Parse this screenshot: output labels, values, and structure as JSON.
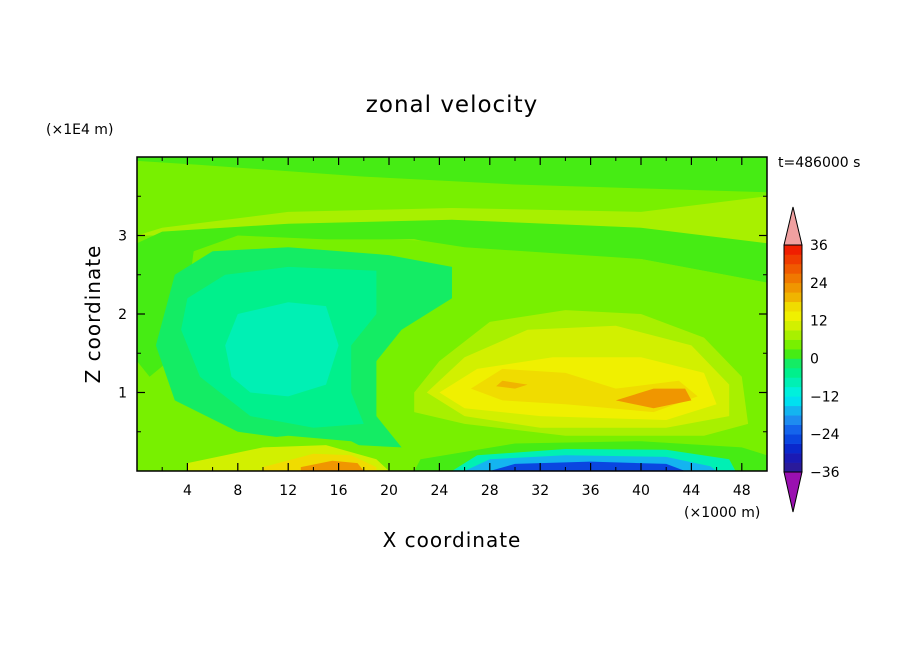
{
  "chart_data": {
    "type": "heatmap",
    "title": "zonal velocity",
    "xlabel": "X coordinate",
    "ylabel": "Z coordinate",
    "x_unit_label": "(×1000 m)",
    "y_unit_label": "(×1E4 m)",
    "time_label": "t=486000 s",
    "xlim": [
      0,
      50
    ],
    "ylim": [
      0,
      4
    ],
    "x_ticks": [
      4,
      8,
      12,
      16,
      20,
      24,
      28,
      32,
      36,
      40,
      44,
      48
    ],
    "y_ticks": [
      1,
      2,
      3
    ],
    "colorbar": {
      "levels": [
        -42,
        -39,
        -36,
        -33,
        -30,
        -27,
        -24,
        -21,
        -18,
        -15,
        -12,
        -9,
        -6,
        -3,
        0,
        3,
        6,
        9,
        12,
        15,
        18,
        21,
        24,
        27,
        30,
        33,
        36,
        39,
        42
      ],
      "tick_labels": [
        "36",
        "24",
        "12",
        "0",
        "−12",
        "−24",
        "−36"
      ],
      "tick_values": [
        36,
        24,
        12,
        0,
        -12,
        -24,
        -36
      ],
      "colors_low_to_high": [
        "#2a1a9a",
        "#1a1ab4",
        "#0a28cc",
        "#0a46e0",
        "#1464ec",
        "#1e8cf0",
        "#14b4f0",
        "#00e0f0",
        "#00f0dc",
        "#00f0b4",
        "#00f08c",
        "#14ec64",
        "#46ec14",
        "#78f000",
        "#a8f000",
        "#d2f000",
        "#f0f000",
        "#f0dc00",
        "#f0b400",
        "#f09600",
        "#f07800",
        "#f05a00",
        "#f03c00",
        "#f01e00"
      ],
      "extend_high_color": "#f0a0a0",
      "extend_low_color": "#9a10b0"
    },
    "features": [
      {
        "kind": "background",
        "value": 3
      },
      {
        "kind": "region",
        "value": 0,
        "description_values": [
          [
            0,
            3.95
          ],
          [
            50,
            3.6
          ]
        ]
      },
      {
        "kind": "region",
        "value": -6,
        "x_range": [
          4,
          22
        ],
        "z_range": [
          0.6,
          2.6
        ]
      },
      {
        "kind": "region",
        "value": -9,
        "x_range": [
          7,
          15
        ],
        "z_range": [
          0.9,
          2.1
        ]
      },
      {
        "kind": "region",
        "value": 12,
        "x_range": [
          24,
          46
        ],
        "z_range": [
          0.5,
          1.6
        ]
      },
      {
        "kind": "region",
        "value": 15,
        "x_range": [
          26,
          44
        ],
        "z_range": [
          0.6,
          1.3
        ]
      },
      {
        "kind": "region",
        "value": 21,
        "x_range": [
          38,
          44
        ],
        "z_range": [
          0.8,
          1.1
        ]
      },
      {
        "kind": "region",
        "value": 18,
        "x_range": [
          12,
          20
        ],
        "z_range": [
          0.0,
          0.2
        ]
      },
      {
        "kind": "region",
        "value": -27,
        "x_range": [
          26,
          45
        ],
        "z_range": [
          0.0,
          0.25
        ]
      }
    ]
  }
}
